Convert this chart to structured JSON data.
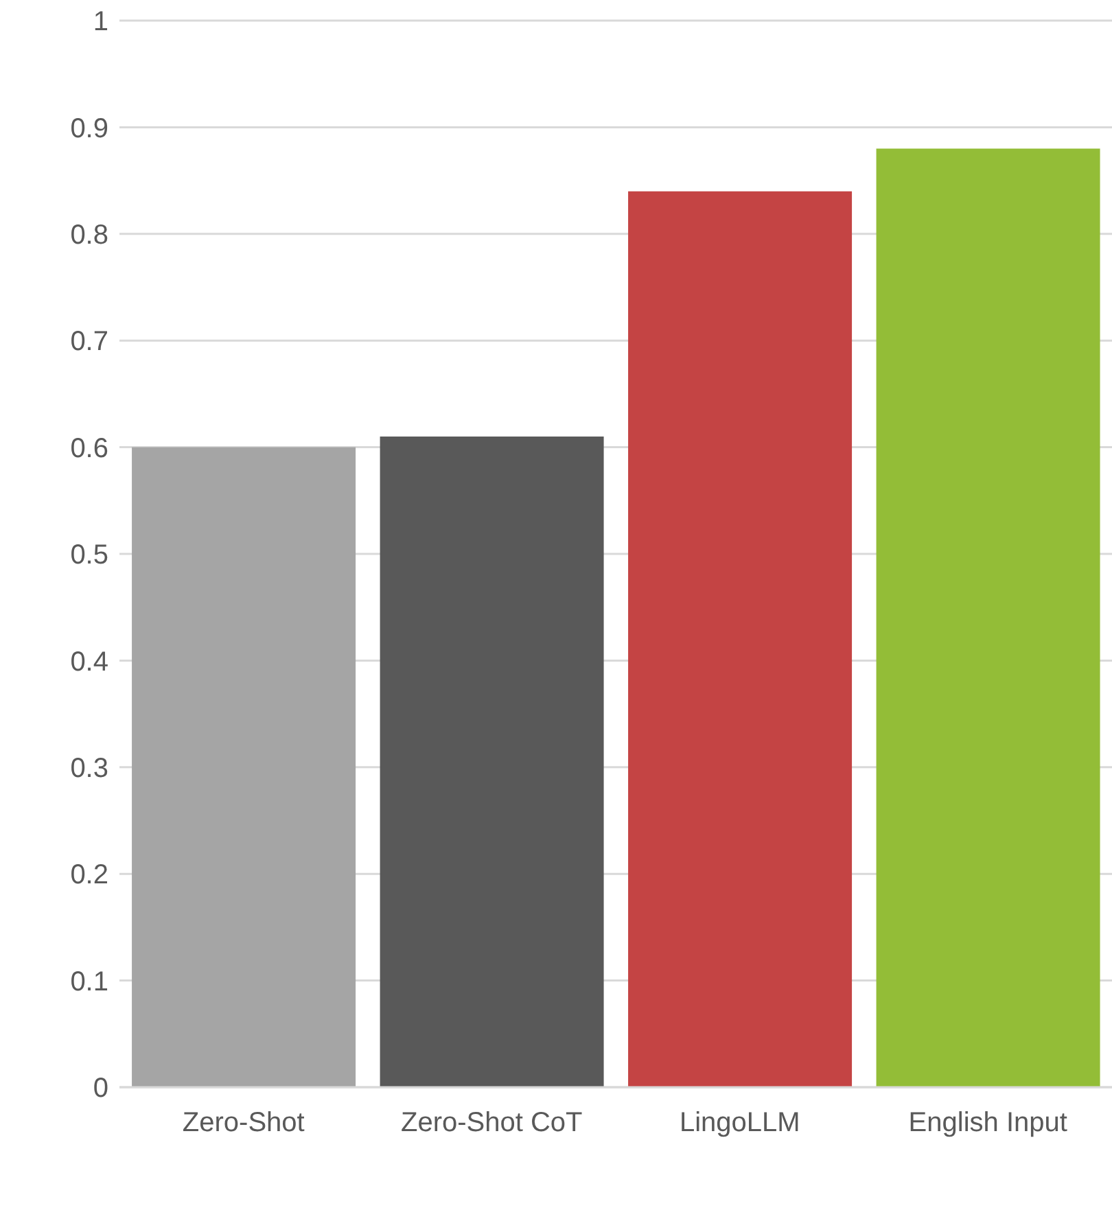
{
  "chart_data": {
    "type": "bar",
    "categories": [
      "Zero-Shot",
      "Zero-Shot CoT",
      "LingoLLM",
      "English Input"
    ],
    "values": [
      0.6,
      0.61,
      0.84,
      0.88
    ],
    "colors": [
      "#a5a5a5",
      "#595959",
      "#c44444",
      "#93bd37"
    ],
    "ylim": [
      0,
      1
    ],
    "yticks": [
      0,
      0.1,
      0.2,
      0.3,
      0.4,
      0.5,
      0.6,
      0.7,
      0.8,
      0.9,
      1
    ],
    "grid": "y"
  }
}
